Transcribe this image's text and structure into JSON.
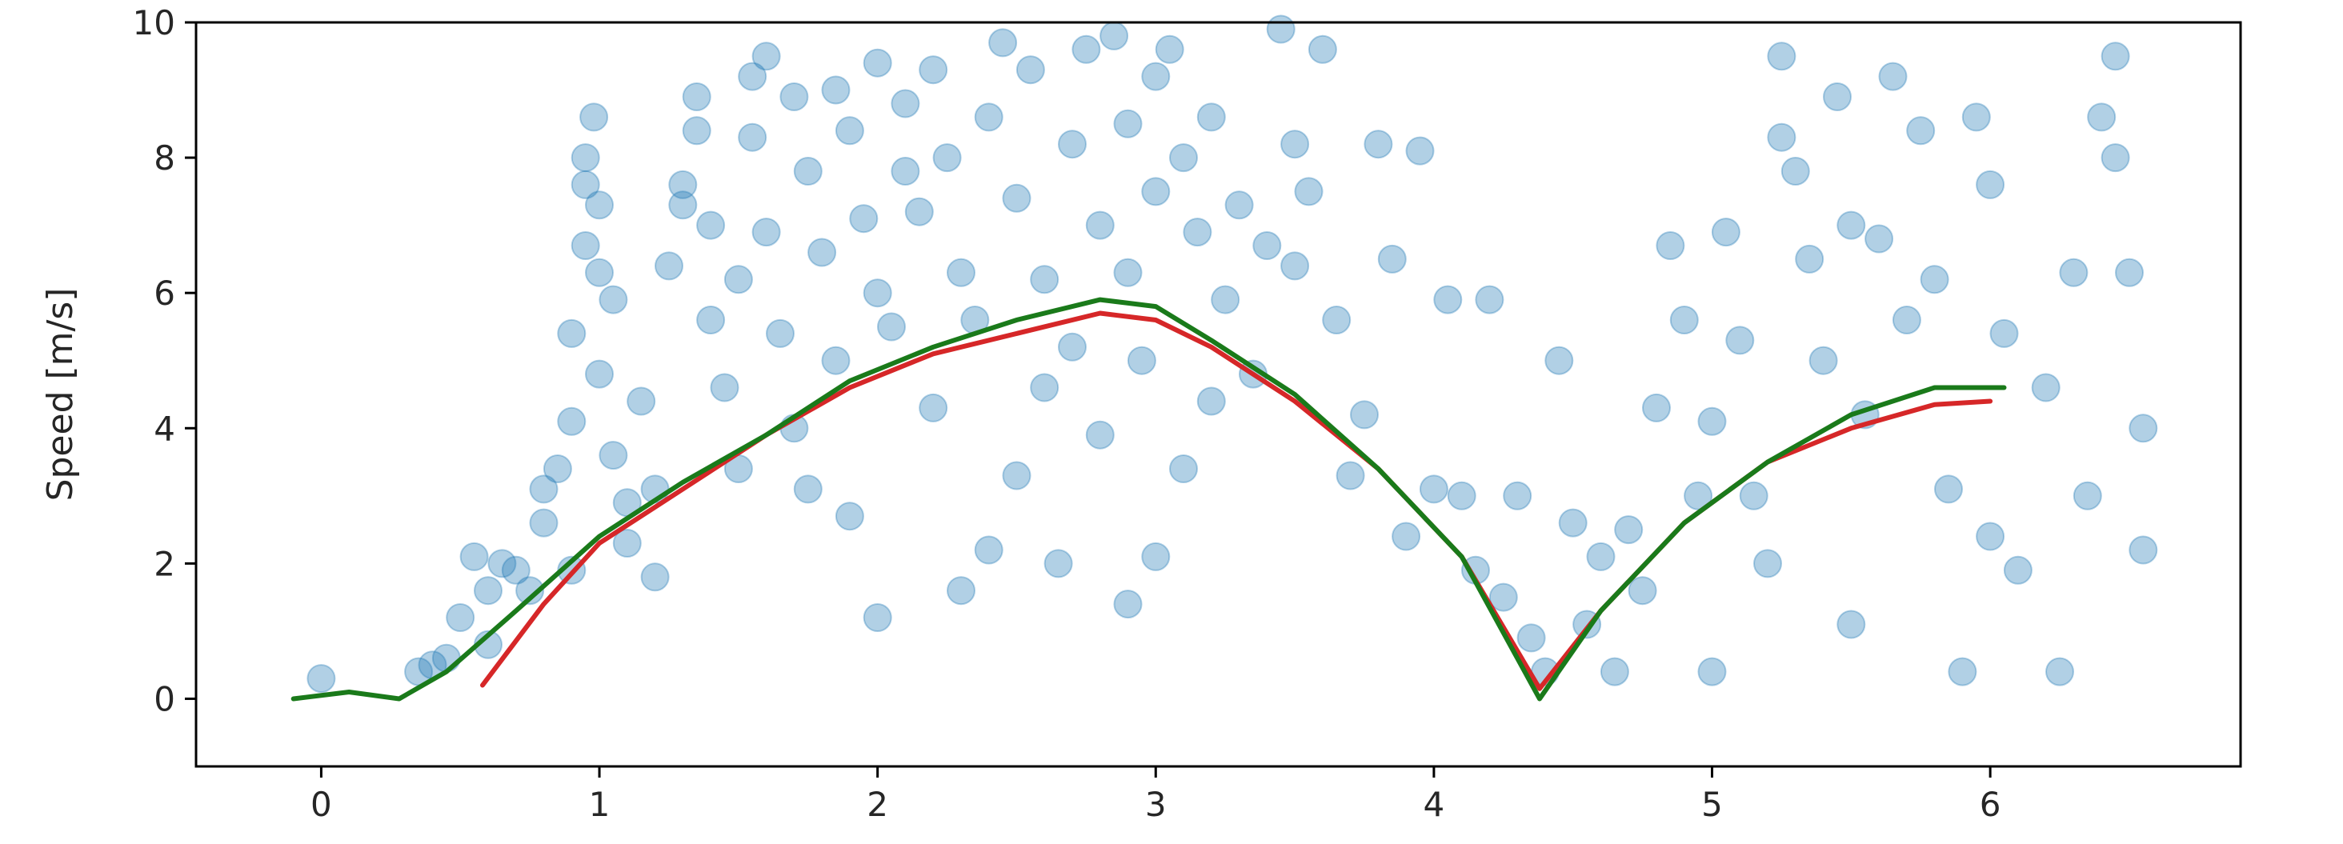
{
  "chart_data": {
    "type": "scatter",
    "title": "",
    "xlabel": "",
    "ylabel": "Speed [m/s]",
    "xlim": [
      -0.45,
      6.9
    ],
    "ylim": [
      -1,
      10
    ],
    "xticks": [
      "0",
      "1",
      "2",
      "3",
      "4",
      "5",
      "6"
    ],
    "yticks": [
      "0",
      "2",
      "4",
      "6",
      "8",
      "10"
    ],
    "grid": false,
    "legend": "none",
    "colors": {
      "scatter": "#1f77b4",
      "red_line": "#d62728",
      "green_line": "#1a7a1a",
      "axes": "#000000"
    },
    "series": [
      {
        "kind": "scatter",
        "color": "#1f77b4",
        "points": [
          [
            0.0,
            0.3
          ],
          [
            0.35,
            0.4
          ],
          [
            0.4,
            0.5
          ],
          [
            0.45,
            0.6
          ],
          [
            0.5,
            1.2
          ],
          [
            0.55,
            2.1
          ],
          [
            0.6,
            1.6
          ],
          [
            0.6,
            0.8
          ],
          [
            0.65,
            2.0
          ],
          [
            0.7,
            1.9
          ],
          [
            0.75,
            1.6
          ],
          [
            0.8,
            3.1
          ],
          [
            0.8,
            2.6
          ],
          [
            0.85,
            3.4
          ],
          [
            0.9,
            5.4
          ],
          [
            0.9,
            4.1
          ],
          [
            0.9,
            1.9
          ],
          [
            0.95,
            6.7
          ],
          [
            0.95,
            7.6
          ],
          [
            0.95,
            8.0
          ],
          [
            0.98,
            8.6
          ],
          [
            1.0,
            7.3
          ],
          [
            1.0,
            6.3
          ],
          [
            1.0,
            4.8
          ],
          [
            1.05,
            5.9
          ],
          [
            1.05,
            3.6
          ],
          [
            1.1,
            2.9
          ],
          [
            1.1,
            2.3
          ],
          [
            1.15,
            4.4
          ],
          [
            1.2,
            3.1
          ],
          [
            1.2,
            1.8
          ],
          [
            1.25,
            6.4
          ],
          [
            1.3,
            7.3
          ],
          [
            1.3,
            7.6
          ],
          [
            1.35,
            8.4
          ],
          [
            1.35,
            8.9
          ],
          [
            1.4,
            7.0
          ],
          [
            1.4,
            5.6
          ],
          [
            1.45,
            4.6
          ],
          [
            1.5,
            6.2
          ],
          [
            1.5,
            3.4
          ],
          [
            1.55,
            8.3
          ],
          [
            1.55,
            9.2
          ],
          [
            1.6,
            9.5
          ],
          [
            1.6,
            6.9
          ],
          [
            1.65,
            5.4
          ],
          [
            1.7,
            8.9
          ],
          [
            1.7,
            4.0
          ],
          [
            1.75,
            7.8
          ],
          [
            1.75,
            3.1
          ],
          [
            1.8,
            6.6
          ],
          [
            1.85,
            9.0
          ],
          [
            1.85,
            5.0
          ],
          [
            1.9,
            8.4
          ],
          [
            1.9,
            2.7
          ],
          [
            1.95,
            7.1
          ],
          [
            2.0,
            9.4
          ],
          [
            2.0,
            6.0
          ],
          [
            2.0,
            1.2
          ],
          [
            2.05,
            5.5
          ],
          [
            2.1,
            8.8
          ],
          [
            2.1,
            7.8
          ],
          [
            2.15,
            7.2
          ],
          [
            2.2,
            9.3
          ],
          [
            2.2,
            4.3
          ],
          [
            2.25,
            8.0
          ],
          [
            2.3,
            6.3
          ],
          [
            2.3,
            1.6
          ],
          [
            2.35,
            5.6
          ],
          [
            2.4,
            8.6
          ],
          [
            2.4,
            2.2
          ],
          [
            2.45,
            9.7
          ],
          [
            2.5,
            7.4
          ],
          [
            2.5,
            3.3
          ],
          [
            2.55,
            9.3
          ],
          [
            2.6,
            6.2
          ],
          [
            2.6,
            4.6
          ],
          [
            2.65,
            2.0
          ],
          [
            2.7,
            8.2
          ],
          [
            2.7,
            5.2
          ],
          [
            2.75,
            9.6
          ],
          [
            2.8,
            7.0
          ],
          [
            2.8,
            3.9
          ],
          [
            2.85,
            9.8
          ],
          [
            2.9,
            8.5
          ],
          [
            2.9,
            6.3
          ],
          [
            2.9,
            1.4
          ],
          [
            2.95,
            5.0
          ],
          [
            3.0,
            9.2
          ],
          [
            3.0,
            7.5
          ],
          [
            3.0,
            2.1
          ],
          [
            3.05,
            9.6
          ],
          [
            3.1,
            8.0
          ],
          [
            3.1,
            3.4
          ],
          [
            3.15,
            6.9
          ],
          [
            3.2,
            8.6
          ],
          [
            3.2,
            4.4
          ],
          [
            3.25,
            5.9
          ],
          [
            3.3,
            7.3
          ],
          [
            3.35,
            4.8
          ],
          [
            3.4,
            6.7
          ],
          [
            3.45,
            9.9
          ],
          [
            3.5,
            8.2
          ],
          [
            3.5,
            6.4
          ],
          [
            3.55,
            7.5
          ],
          [
            3.6,
            9.6
          ],
          [
            3.65,
            5.6
          ],
          [
            3.7,
            3.3
          ],
          [
            3.75,
            4.2
          ],
          [
            3.8,
            8.2
          ],
          [
            3.85,
            6.5
          ],
          [
            3.9,
            2.4
          ],
          [
            3.95,
            8.1
          ],
          [
            4.0,
            3.1
          ],
          [
            4.05,
            5.9
          ],
          [
            4.1,
            3.0
          ],
          [
            4.15,
            1.9
          ],
          [
            4.2,
            5.9
          ],
          [
            4.25,
            1.5
          ],
          [
            4.3,
            3.0
          ],
          [
            4.35,
            0.9
          ],
          [
            4.4,
            0.4
          ],
          [
            4.45,
            5.0
          ],
          [
            4.5,
            2.6
          ],
          [
            4.55,
            1.1
          ],
          [
            4.6,
            2.1
          ],
          [
            4.65,
            0.4
          ],
          [
            4.7,
            2.5
          ],
          [
            4.75,
            1.6
          ],
          [
            4.8,
            4.3
          ],
          [
            4.85,
            6.7
          ],
          [
            4.9,
            5.6
          ],
          [
            4.95,
            3.0
          ],
          [
            5.0,
            4.1
          ],
          [
            5.0,
            0.4
          ],
          [
            5.05,
            6.9
          ],
          [
            5.1,
            5.3
          ],
          [
            5.15,
            3.0
          ],
          [
            5.2,
            2.0
          ],
          [
            5.25,
            9.5
          ],
          [
            5.25,
            8.3
          ],
          [
            5.3,
            7.8
          ],
          [
            5.35,
            6.5
          ],
          [
            5.4,
            5.0
          ],
          [
            5.45,
            8.9
          ],
          [
            5.5,
            7.0
          ],
          [
            5.5,
            1.1
          ],
          [
            5.55,
            4.2
          ],
          [
            5.6,
            6.8
          ],
          [
            5.65,
            9.2
          ],
          [
            5.7,
            5.6
          ],
          [
            5.75,
            8.4
          ],
          [
            5.8,
            6.2
          ],
          [
            5.85,
            3.1
          ],
          [
            5.9,
            0.4
          ],
          [
            5.95,
            8.6
          ],
          [
            6.0,
            7.6
          ],
          [
            6.0,
            2.4
          ],
          [
            6.05,
            5.4
          ],
          [
            6.1,
            1.9
          ],
          [
            6.2,
            4.6
          ],
          [
            6.25,
            0.4
          ],
          [
            6.3,
            6.3
          ],
          [
            6.35,
            3.0
          ],
          [
            6.4,
            8.6
          ],
          [
            6.45,
            9.5
          ],
          [
            6.45,
            8.0
          ],
          [
            6.5,
            6.3
          ],
          [
            6.55,
            4.0
          ],
          [
            6.55,
            2.2
          ]
        ]
      },
      {
        "kind": "line",
        "color": "#d62728",
        "points": [
          [
            0.58,
            0.2
          ],
          [
            0.8,
            1.4
          ],
          [
            1.0,
            2.3
          ],
          [
            1.3,
            3.1
          ],
          [
            1.6,
            3.9
          ],
          [
            1.9,
            4.6
          ],
          [
            2.2,
            5.1
          ],
          [
            2.5,
            5.4
          ],
          [
            2.8,
            5.7
          ],
          [
            3.0,
            5.6
          ],
          [
            3.2,
            5.2
          ],
          [
            3.5,
            4.4
          ],
          [
            3.8,
            3.4
          ],
          [
            4.1,
            2.1
          ],
          [
            4.38,
            0.15
          ],
          [
            4.6,
            1.3
          ],
          [
            4.9,
            2.6
          ],
          [
            5.2,
            3.5
          ],
          [
            5.5,
            4.0
          ],
          [
            5.8,
            4.35
          ],
          [
            6.0,
            4.4
          ]
        ]
      },
      {
        "kind": "line",
        "color": "#1a7a1a",
        "points": [
          [
            -0.1,
            0.0
          ],
          [
            0.1,
            0.1
          ],
          [
            0.28,
            0.0
          ],
          [
            0.45,
            0.4
          ],
          [
            0.7,
            1.3
          ],
          [
            1.0,
            2.4
          ],
          [
            1.3,
            3.2
          ],
          [
            1.6,
            3.9
          ],
          [
            1.9,
            4.7
          ],
          [
            2.2,
            5.2
          ],
          [
            2.5,
            5.6
          ],
          [
            2.8,
            5.9
          ],
          [
            3.0,
            5.8
          ],
          [
            3.2,
            5.3
          ],
          [
            3.5,
            4.5
          ],
          [
            3.8,
            3.4
          ],
          [
            4.1,
            2.1
          ],
          [
            4.38,
            0.0
          ],
          [
            4.6,
            1.3
          ],
          [
            4.9,
            2.6
          ],
          [
            5.2,
            3.5
          ],
          [
            5.5,
            4.2
          ],
          [
            5.8,
            4.6
          ],
          [
            6.05,
            4.6
          ]
        ]
      }
    ]
  }
}
